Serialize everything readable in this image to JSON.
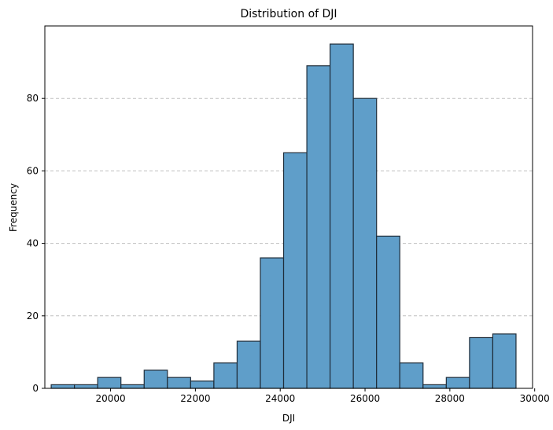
{
  "chart_data": {
    "type": "bar",
    "title": "Distribution of DJI",
    "xlabel": "DJI",
    "ylabel": "Frequency",
    "xlim": [
      18450,
      29950
    ],
    "ylim": [
      0,
      100
    ],
    "x_ticks": [
      20000,
      22000,
      24000,
      26000,
      28000,
      30000
    ],
    "y_ticks": [
      0,
      20,
      40,
      60,
      80
    ],
    "grid": "y-dashed",
    "bar_color": "#5f9ec9",
    "edge_color": "#1f2d3a",
    "bins": [
      {
        "start": 18600,
        "end": 19148,
        "count": 1
      },
      {
        "start": 19148,
        "end": 19696,
        "count": 1
      },
      {
        "start": 19696,
        "end": 20244,
        "count": 3
      },
      {
        "start": 20244,
        "end": 20792,
        "count": 1
      },
      {
        "start": 20792,
        "end": 21340,
        "count": 5
      },
      {
        "start": 21340,
        "end": 21888,
        "count": 3
      },
      {
        "start": 21888,
        "end": 22436,
        "count": 2
      },
      {
        "start": 22436,
        "end": 22984,
        "count": 7
      },
      {
        "start": 22984,
        "end": 23532,
        "count": 13
      },
      {
        "start": 23532,
        "end": 24080,
        "count": 36
      },
      {
        "start": 24080,
        "end": 24628,
        "count": 65
      },
      {
        "start": 24628,
        "end": 25176,
        "count": 89
      },
      {
        "start": 25176,
        "end": 25724,
        "count": 95
      },
      {
        "start": 25724,
        "end": 26272,
        "count": 80
      },
      {
        "start": 26272,
        "end": 26820,
        "count": 42
      },
      {
        "start": 26820,
        "end": 27368,
        "count": 7
      },
      {
        "start": 27368,
        "end": 27916,
        "count": 1
      },
      {
        "start": 27916,
        "end": 28464,
        "count": 3
      },
      {
        "start": 28464,
        "end": 29012,
        "count": 14
      },
      {
        "start": 29012,
        "end": 29560,
        "count": 15
      }
    ]
  }
}
